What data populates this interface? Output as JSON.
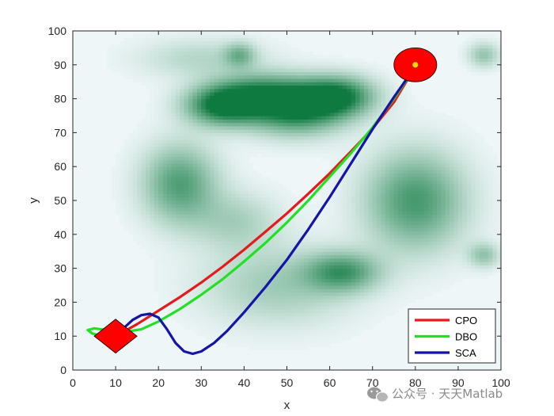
{
  "chart_data": {
    "type": "line",
    "title": "",
    "xlabel": "x",
    "ylabel": "y",
    "xlim": [
      0,
      100
    ],
    "ylim": [
      0,
      100
    ],
    "xticks": [
      0,
      10,
      20,
      30,
      40,
      50,
      60,
      70,
      80,
      90,
      100
    ],
    "yticks": [
      0,
      10,
      20,
      30,
      40,
      50,
      60,
      70,
      80,
      90,
      100
    ],
    "grid": false,
    "legend_position": "bottom-right",
    "background": {
      "type": "terrain-heatmap",
      "colormap": [
        "#eef6f8",
        "#0f7a40"
      ],
      "peaks": [
        {
          "x": 35,
          "y": 78,
          "sx": 6,
          "sy": 4,
          "h": 1.0
        },
        {
          "x": 52,
          "y": 77,
          "sx": 8,
          "sy": 5,
          "h": 1.0
        },
        {
          "x": 62,
          "y": 81,
          "sx": 6,
          "sy": 4,
          "h": 0.9
        },
        {
          "x": 44,
          "y": 82,
          "sx": 8,
          "sy": 4,
          "h": 0.65
        },
        {
          "x": 25,
          "y": 55,
          "sx": 6,
          "sy": 8,
          "h": 0.7
        },
        {
          "x": 80,
          "y": 50,
          "sx": 8,
          "sy": 10,
          "h": 0.75
        },
        {
          "x": 63,
          "y": 29,
          "sx": 6,
          "sy": 4,
          "h": 0.7
        },
        {
          "x": 48,
          "y": 25,
          "sx": 12,
          "sy": 8,
          "h": 0.35
        },
        {
          "x": 38,
          "y": 44,
          "sx": 7,
          "sy": 6,
          "h": 0.3
        },
        {
          "x": 39,
          "y": 93,
          "sx": 2.5,
          "sy": 2.5,
          "h": 0.45
        },
        {
          "x": 96,
          "y": 93,
          "sx": 2.5,
          "sy": 2.5,
          "h": 0.4
        },
        {
          "x": 96,
          "y": 34,
          "sx": 2.5,
          "sy": 2.5,
          "h": 0.4
        },
        {
          "x": 30,
          "y": 92,
          "sx": 10,
          "sy": 4,
          "h": 0.25
        }
      ]
    },
    "markers": [
      {
        "name": "start",
        "shape": "diamond",
        "x": 10,
        "y": 10,
        "size": 5,
        "color": "#ff0000"
      },
      {
        "name": "goal",
        "shape": "circle",
        "x": 80,
        "y": 90,
        "r": 5,
        "color": "#ff0000"
      },
      {
        "name": "goal-dot",
        "shape": "dot",
        "x": 80,
        "y": 90,
        "r": 0.7,
        "color": "#ffd700"
      }
    ],
    "series": [
      {
        "name": "CPO",
        "color": "#e41a1c",
        "x": [
          10,
          15,
          20,
          25,
          30,
          35,
          40,
          45,
          50,
          55,
          60,
          65,
          70,
          75,
          80
        ],
        "y": [
          10,
          13.5,
          17.5,
          21.5,
          25.8,
          30.5,
          35.5,
          40.8,
          46.2,
          52,
          58,
          64.5,
          71.2,
          79,
          89.5
        ]
      },
      {
        "name": "DBO",
        "color": "#22e022",
        "x": [
          10,
          7,
          4.5,
          3.5,
          5,
          8,
          12,
          16,
          20,
          25,
          30,
          35,
          40,
          45,
          50,
          55,
          60,
          65,
          70,
          75,
          80
        ],
        "y": [
          9.5,
          10,
          10.8,
          11.8,
          12.3,
          11.8,
          11.2,
          12,
          14.3,
          18,
          22.2,
          26.8,
          32,
          37.5,
          43.5,
          50,
          57,
          64,
          71.5,
          80,
          89.5
        ]
      },
      {
        "name": "SCA",
        "color": "#1414a8",
        "x": [
          10,
          12,
          14,
          16,
          18,
          20,
          22,
          24,
          26,
          28,
          30,
          33,
          36,
          40,
          45,
          50,
          55,
          60,
          65,
          70,
          75,
          80
        ],
        "y": [
          10,
          12.5,
          14.8,
          16.2,
          16.6,
          15.5,
          12,
          8,
          5.5,
          4.8,
          5.5,
          8,
          11.5,
          17,
          24.5,
          32.5,
          41.5,
          51,
          61,
          71,
          80.5,
          89.5
        ]
      }
    ]
  },
  "watermark": {
    "text": "公众号 · 天天Matlab"
  }
}
